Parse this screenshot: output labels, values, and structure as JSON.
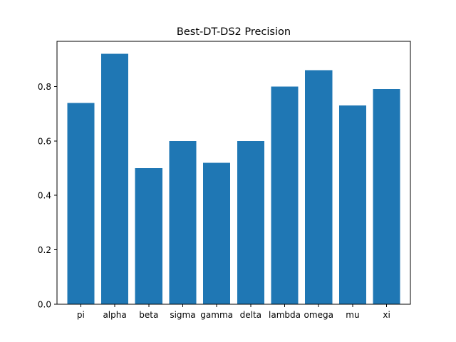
{
  "chart_data": {
    "type": "bar",
    "title": "Best-DT-DS2 Precision",
    "xlabel": "",
    "ylabel": "",
    "categories": [
      "pi",
      "alpha",
      "beta",
      "sigma",
      "gamma",
      "delta",
      "lambda",
      "omega",
      "mu",
      "xi"
    ],
    "values": [
      0.74,
      0.92,
      0.5,
      0.6,
      0.52,
      0.6,
      0.8,
      0.86,
      0.73,
      0.79
    ],
    "ylim": [
      0,
      0.966
    ],
    "yticks": [
      0.0,
      0.2,
      0.4,
      0.6,
      0.8
    ],
    "ytick_labels": [
      "0.0",
      "0.2",
      "0.4",
      "0.6",
      "0.8"
    ],
    "grid": false,
    "legend": "none",
    "bar_color": "#1f77b4"
  }
}
